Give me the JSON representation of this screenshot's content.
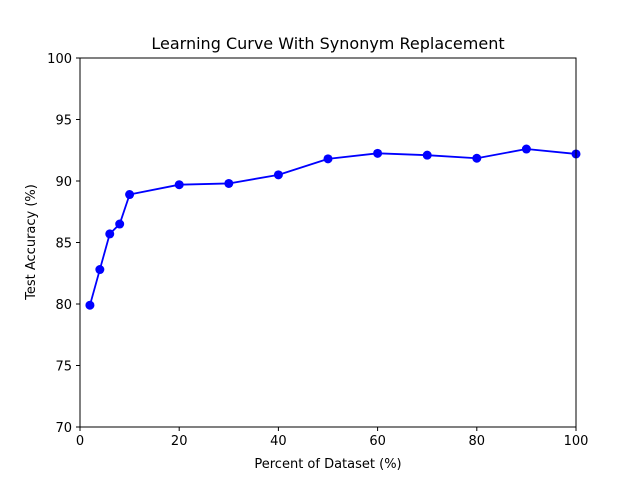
{
  "chart_data": {
    "type": "line",
    "title": "Learning Curve With Synonym Replacement",
    "xlabel": "Percent of Dataset (%)",
    "ylabel": "Test Accuracy (%)",
    "xlim": [
      0,
      100
    ],
    "ylim": [
      70,
      100
    ],
    "x_ticks": [
      0,
      20,
      40,
      60,
      80,
      100
    ],
    "y_ticks": [
      70,
      75,
      80,
      85,
      90,
      95,
      100
    ],
    "grid": false,
    "series": [
      {
        "color": "#0000ff",
        "marker": "circle",
        "x": [
          2,
          4,
          6,
          8,
          10,
          20,
          30,
          40,
          50,
          60,
          70,
          80,
          90,
          100
        ],
        "y": [
          79.9,
          82.8,
          85.7,
          86.5,
          88.9,
          89.7,
          89.8,
          90.5,
          91.8,
          92.25,
          92.1,
          91.85,
          92.6,
          92.2
        ]
      }
    ]
  }
}
